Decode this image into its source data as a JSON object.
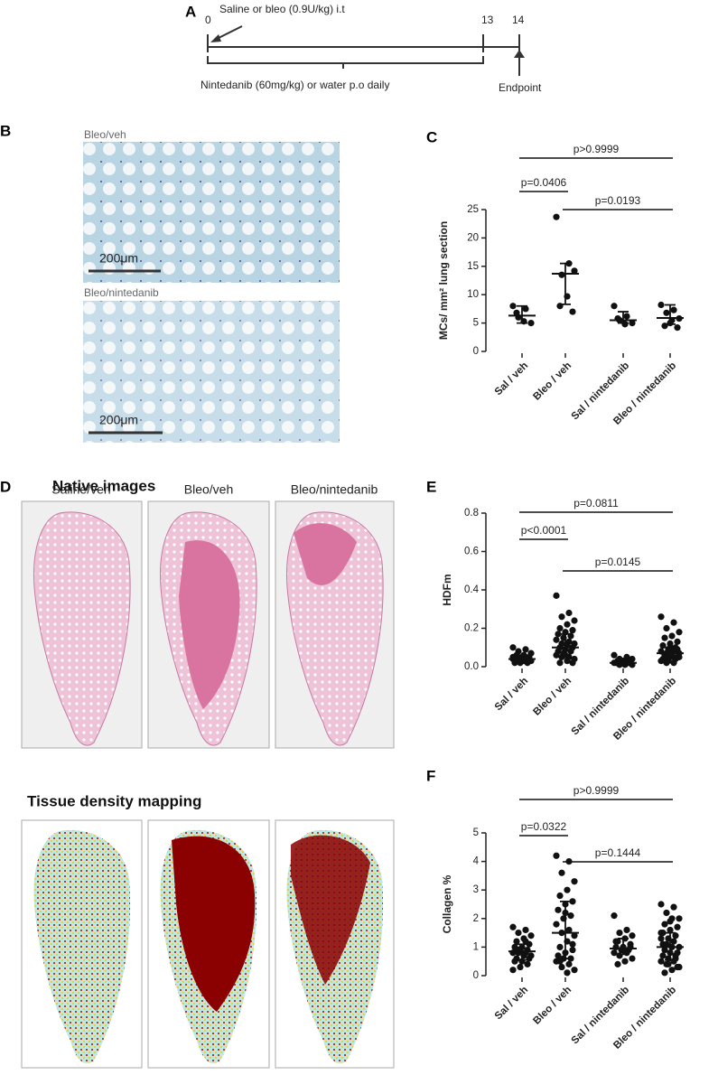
{
  "panel_a": {
    "letter": "A",
    "injection": "Saline or bleo (0.9U/kg) i.t",
    "days": [
      0,
      13,
      14
    ],
    "treatment": "Nintedanib (60mg/kg) or water p.o daily",
    "endpoint": "Endpoint"
  },
  "panel_b": {
    "letter": "B",
    "images": [
      {
        "caption": "Bleo/veh",
        "scale": "200μm"
      },
      {
        "caption": "Bleo/nintedanib",
        "scale": "200μm"
      }
    ]
  },
  "panel_d": {
    "letter": "D",
    "native_title": "Native images",
    "density_title": "Tissue density mapping",
    "columns": [
      "Saline/veh",
      "Bleo/veh",
      "Bleo/nintedanib"
    ]
  },
  "chart_data": [
    {
      "type": "strip",
      "letter": "C",
      "y_label": "MCs/ mm² lung section",
      "categories": [
        "Sal / veh",
        "Bleo / veh",
        "Sal / nintedanib",
        "Bleo / nintedanib"
      ],
      "values": [
        [
          8,
          7.5,
          6,
          5,
          5.3,
          6.8
        ],
        [
          23.7,
          15.5,
          13.5,
          14.2,
          9.7,
          8,
          7
        ],
        [
          8,
          6.2,
          5.5,
          5,
          4.8,
          5.8
        ],
        [
          8.2,
          7.3,
          6.8,
          5.8,
          5.5,
          4.5,
          4.2,
          5
        ]
      ],
      "medians": [
        6.3,
        13.7,
        5.5,
        5.9
      ],
      "lows": [
        5,
        8.3,
        5,
        4.8
      ],
      "highs": [
        8,
        15.5,
        7,
        8.2
      ],
      "ylim": [
        0,
        25
      ],
      "yticks": [
        0,
        5,
        10,
        15,
        20,
        25
      ],
      "color": "#111111",
      "comparisons": [
        {
          "label": "p>0.9999",
          "from": 0,
          "to": 3
        },
        {
          "label": "p=0.0406",
          "from": 0,
          "to": 1
        },
        {
          "label": "p=0.0193",
          "from": 1,
          "to": 3
        }
      ]
    },
    {
      "type": "strip",
      "letter": "E",
      "y_label": "HDFm",
      "categories": [
        "Sal / veh",
        "Bleo / veh",
        "Sal / nintedanib",
        "Bleo / nintedanib"
      ],
      "values": [
        [
          0.1,
          0.09,
          0.08,
          0.07,
          0.06,
          0.06,
          0.05,
          0.05,
          0.05,
          0.04,
          0.04,
          0.04,
          0.04,
          0.04,
          0.03,
          0.03,
          0.03,
          0.03,
          0.03,
          0.02,
          0.02,
          0.02,
          0.05,
          0.04,
          0.03
        ],
        [
          0.37,
          0.28,
          0.26,
          0.24,
          0.22,
          0.2,
          0.19,
          0.18,
          0.17,
          0.16,
          0.15,
          0.14,
          0.13,
          0.12,
          0.12,
          0.11,
          0.1,
          0.1,
          0.09,
          0.08,
          0.08,
          0.07,
          0.06,
          0.05,
          0.05,
          0.04,
          0.03,
          0.02,
          0.02,
          0.06
        ],
        [
          0.06,
          0.05,
          0.04,
          0.04,
          0.03,
          0.03,
          0.03,
          0.03,
          0.02,
          0.02,
          0.02,
          0.02,
          0.02,
          0.01,
          0.01,
          0.01,
          0.03,
          0.02
        ],
        [
          0.26,
          0.23,
          0.2,
          0.18,
          0.16,
          0.15,
          0.13,
          0.12,
          0.11,
          0.1,
          0.09,
          0.08,
          0.08,
          0.07,
          0.07,
          0.06,
          0.06,
          0.05,
          0.05,
          0.04,
          0.04,
          0.03,
          0.03,
          0.02,
          0.02,
          0.05,
          0.06,
          0.04,
          0.09,
          0.1
        ]
      ],
      "medians": [
        0.04,
        0.1,
        0.02,
        0.07
      ],
      "lows": [
        0.03,
        0.06,
        0.02,
        0.04
      ],
      "highs": [
        0.06,
        0.17,
        0.04,
        0.1
      ],
      "ylim": [
        0,
        0.8
      ],
      "yticks": [
        {
          "value": 0,
          "label": "0.0"
        },
        0.2,
        0.4,
        0.6,
        0.8
      ],
      "color": "#111111",
      "comparisons": [
        {
          "label": "p=0.0811",
          "from": 0,
          "to": 3
        },
        {
          "label": "p<0.0001",
          "from": 0,
          "to": 1
        },
        {
          "label": "p=0.0145",
          "from": 1,
          "to": 3
        }
      ]
    },
    {
      "type": "strip",
      "letter": "F",
      "y_label": "Collagen %",
      "categories": [
        "Sal / veh",
        "Bleo / veh",
        "Sal / nintedanib",
        "Bleo / nintedanib"
      ],
      "values": [
        [
          1.7,
          1.6,
          1.5,
          1.4,
          1.3,
          1.2,
          1.1,
          1.0,
          1.0,
          0.9,
          0.9,
          0.8,
          0.8,
          0.8,
          0.7,
          0.7,
          0.6,
          0.6,
          0.5,
          0.5,
          0.4,
          0.3,
          0.2,
          1.2,
          0.9
        ],
        [
          4.2,
          4.0,
          3.6,
          3.3,
          3.0,
          2.8,
          2.6,
          2.5,
          2.3,
          2.1,
          2.0,
          1.8,
          1.6,
          1.5,
          1.4,
          1.2,
          1.0,
          0.9,
          0.8,
          0.7,
          0.6,
          0.6,
          0.5,
          0.4,
          0.3,
          0.2,
          0.1,
          0.5,
          1.1,
          2.2
        ],
        [
          2.1,
          1.6,
          1.5,
          1.4,
          1.3,
          1.2,
          1.1,
          1.0,
          1.0,
          0.9,
          0.9,
          0.8,
          0.8,
          0.7,
          0.6,
          0.5,
          0.4,
          1.0,
          0.9,
          1.2
        ],
        [
          2.5,
          2.4,
          2.2,
          2.0,
          2.0,
          1.8,
          1.7,
          1.6,
          1.5,
          1.4,
          1.3,
          1.3,
          1.2,
          1.1,
          1.0,
          1.0,
          0.9,
          0.8,
          0.8,
          0.7,
          0.6,
          0.6,
          0.5,
          0.5,
          0.4,
          0.3,
          0.2,
          0.1,
          0.3,
          1.9,
          1.1,
          0.7,
          0.4,
          1.5
        ]
      ],
      "medians": [
        0.85,
        1.5,
        0.95,
        1.0
      ],
      "lows": [
        0.55,
        0.6,
        0.75,
        0.55
      ],
      "highs": [
        1.1,
        2.6,
        1.3,
        1.5
      ],
      "ylim": [
        0,
        5
      ],
      "yticks": [
        0,
        1,
        2,
        3,
        4,
        5
      ],
      "color": "#111111",
      "comparisons": [
        {
          "label": "p>0.9999",
          "from": 0,
          "to": 3
        },
        {
          "label": "p=0.0322",
          "from": 0,
          "to": 1
        },
        {
          "label": "p=0.1444",
          "from": 1,
          "to": 3
        }
      ]
    }
  ]
}
